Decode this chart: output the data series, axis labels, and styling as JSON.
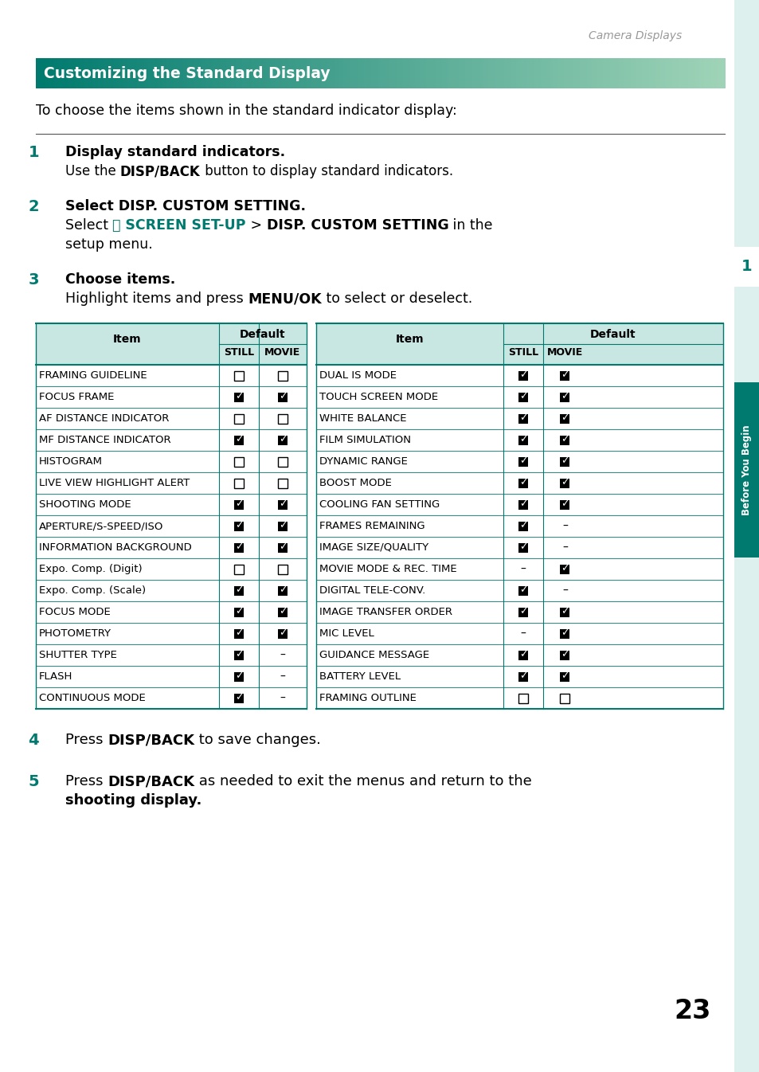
{
  "page_header": "Camera Displays",
  "section_title": "Customizing the Standard Display",
  "teal_color": "#007a6e",
  "teal_light": "#c8e6e2",
  "table_header_bg": "#c8e6e2",
  "intro_text": "To choose the items shown in the standard indicator display:",
  "left_items": [
    "FRAMING GUIDELINE",
    "FOCUS FRAME",
    "AF DISTANCE INDICATOR",
    "MF DISTANCE INDICATOR",
    "HISTOGRAM",
    "LIVE VIEW HIGHLIGHT ALERT",
    "SHOOTING MODE",
    "APERTURE/S-SPEED/ISO",
    "INFORMATION BACKGROUND",
    "Expo. Comp. (Digit)",
    "Expo. Comp. (Scale)",
    "FOCUS MODE",
    "PHOTOMETRY",
    "SHUTTER TYPE",
    "FLASH",
    "CONTINUOUS MODE"
  ],
  "left_still": [
    "N",
    "Y",
    "N",
    "Y",
    "N",
    "N",
    "Y",
    "Y",
    "Y",
    "N",
    "Y",
    "Y",
    "Y",
    "Y",
    "Y",
    "Y"
  ],
  "left_movie": [
    "N",
    "Y",
    "N",
    "Y",
    "N",
    "N",
    "Y",
    "Y",
    "Y",
    "N",
    "Y",
    "Y",
    "Y",
    "-",
    "-",
    "-"
  ],
  "right_items": [
    "DUAL IS MODE",
    "TOUCH SCREEN MODE",
    "WHITE BALANCE",
    "FILM SIMULATION",
    "DYNAMIC RANGE",
    "BOOST MODE",
    "COOLING FAN SETTING",
    "FRAMES REMAINING",
    "IMAGE SIZE/QUALITY",
    "MOVIE MODE & REC. TIME",
    "DIGITAL TELE-CONV.",
    "IMAGE TRANSFER ORDER",
    "MIC LEVEL",
    "GUIDANCE MESSAGE",
    "BATTERY LEVEL",
    "FRAMING OUTLINE"
  ],
  "right_still": [
    "Y",
    "Y",
    "Y",
    "Y",
    "Y",
    "Y",
    "Y",
    "Y",
    "Y",
    "-",
    "Y",
    "Y",
    "-",
    "Y",
    "Y",
    "N"
  ],
  "right_movie": [
    "Y",
    "Y",
    "Y",
    "Y",
    "Y",
    "Y",
    "Y",
    "-",
    "-",
    "Y",
    "-",
    "Y",
    "Y",
    "Y",
    "Y",
    "N"
  ],
  "sidebar_text": "Before You Begin",
  "sidebar_color": "#007a6e",
  "sidebar_bg": "#ddf0ed",
  "page_num": "23",
  "background_color": "#ffffff"
}
